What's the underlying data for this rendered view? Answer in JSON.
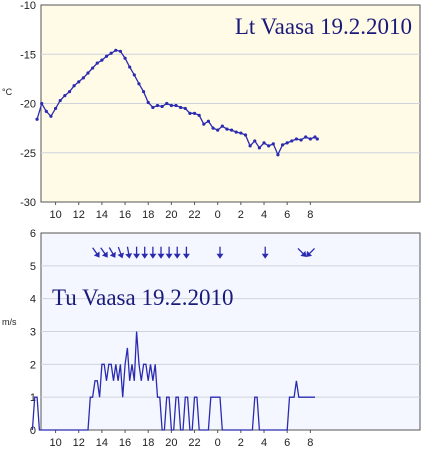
{
  "chart_data": [
    {
      "type": "line",
      "title": "Lt Vaasa 19.2.2010",
      "ylabel": "°C",
      "ylim": [
        -30,
        -10
      ],
      "yticks": [
        "-10",
        "-15",
        "-20",
        "-25",
        "-30"
      ],
      "xticks": [
        "10",
        "12",
        "14",
        "16",
        "18",
        "20",
        "22",
        "0",
        "2",
        "4",
        "6",
        "8"
      ],
      "background": "#fffbe6",
      "series": [
        {
          "color": "#2b2bb0",
          "x": [
            8.4,
            8.8,
            9.2,
            9.6,
            10.0,
            10.4,
            10.8,
            11.2,
            11.6,
            12.0,
            12.4,
            12.8,
            13.2,
            13.6,
            14.0,
            14.4,
            14.8,
            15.2,
            15.6,
            16.0,
            16.4,
            16.8,
            17.2,
            17.6,
            18.0,
            18.4,
            18.8,
            19.2,
            19.6,
            20.0,
            20.4,
            20.8,
            21.2,
            21.6,
            22.0,
            22.4,
            22.8,
            23.2,
            23.6,
            24.0,
            24.4,
            24.8,
            25.2,
            25.6,
            26.0,
            26.4,
            26.8,
            27.2,
            27.6,
            28.0,
            28.4,
            28.8,
            29.2,
            29.6,
            30.0,
            30.4,
            30.8,
            31.2,
            31.6,
            32.0,
            32.4,
            32.6
          ],
          "values": [
            -21.6,
            -20.0,
            -20.8,
            -21.3,
            -20.5,
            -19.7,
            -19.2,
            -18.8,
            -18.2,
            -17.8,
            -17.4,
            -16.9,
            -16.4,
            -15.9,
            -15.6,
            -15.2,
            -14.9,
            -14.6,
            -14.7,
            -15.4,
            -16.3,
            -17.1,
            -18.0,
            -18.8,
            -19.9,
            -20.4,
            -20.2,
            -20.3,
            -20.0,
            -20.2,
            -20.2,
            -20.4,
            -20.5,
            -21.0,
            -21.0,
            -21.2,
            -22.1,
            -21.8,
            -22.5,
            -22.7,
            -22.3,
            -22.6,
            -22.7,
            -22.9,
            -23.0,
            -23.2,
            -24.3,
            -23.8,
            -24.5,
            -24.0,
            -24.3,
            -24.1,
            -25.2,
            -24.2,
            -24.0,
            -23.8,
            -23.6,
            -23.7,
            -23.4,
            -23.6,
            -23.4,
            -23.6
          ]
        }
      ]
    },
    {
      "type": "line",
      "title": "Tu Vaasa 19.2.2010",
      "ylabel": "m/s",
      "ylim": [
        0,
        6
      ],
      "yticks": [
        "6",
        "5",
        "4",
        "3",
        "2",
        "1",
        "0"
      ],
      "xticks": [
        "10",
        "12",
        "14",
        "16",
        "18",
        "20",
        "22",
        "0",
        "2",
        "4",
        "6",
        "8"
      ],
      "background": "#f4f7ff",
      "series": [
        {
          "color": "#2b2bb0",
          "x": [
            8.0,
            8.2,
            8.4,
            8.6,
            12.6,
            12.8,
            13.0,
            13.2,
            13.4,
            13.6,
            13.8,
            14.0,
            14.2,
            14.4,
            14.6,
            14.8,
            15.0,
            15.2,
            15.4,
            15.6,
            15.8,
            16.0,
            16.2,
            16.4,
            16.6,
            16.8,
            17.0,
            17.2,
            17.4,
            17.6,
            17.8,
            18.0,
            18.2,
            18.4,
            18.6,
            18.8,
            19.0,
            19.2,
            19.4,
            19.6,
            19.8,
            20.0,
            20.2,
            20.4,
            20.6,
            20.8,
            21.0,
            21.2,
            21.4,
            21.6,
            21.8,
            22.0,
            22.2,
            22.4,
            22.6,
            22.8,
            23.0,
            23.2,
            23.4,
            23.6,
            24.2,
            24.4,
            25.4,
            27.0,
            27.2,
            27.4,
            27.6,
            30.0,
            30.2,
            30.4,
            30.6,
            30.8,
            31.0,
            31.2,
            31.4,
            32.4
          ],
          "values": [
            0,
            1,
            1,
            0,
            0,
            0,
            1,
            1,
            1.5,
            1.5,
            1,
            2,
            2,
            1.5,
            2,
            2,
            1.5,
            2,
            1.5,
            2,
            1,
            2,
            2.5,
            1.5,
            2,
            1.5,
            3,
            2,
            1.5,
            2,
            2,
            1.5,
            2,
            1.5,
            2,
            1,
            1,
            0,
            0,
            1,
            1,
            0,
            0,
            1,
            1,
            0,
            0,
            1,
            1,
            0,
            0,
            1,
            1,
            0,
            0,
            0,
            0,
            0,
            1,
            1,
            1,
            0,
            0,
            0,
            1,
            1,
            0,
            0,
            1,
            1,
            1,
            1.5,
            1,
            1,
            1,
            1
          ]
        }
      ],
      "wind_directions": {
        "x": [
          13.5,
          14.2,
          14.9,
          15.6,
          16.3,
          17.0,
          17.7,
          18.4,
          19.1,
          19.8,
          20.5,
          21.3,
          24.2,
          28.1,
          31.3,
          32.0
        ],
        "level": 5.4,
        "angles_deg": [
          -35,
          -35,
          -30,
          -20,
          -10,
          0,
          0,
          0,
          0,
          0,
          0,
          0,
          0,
          0,
          -45,
          45
        ]
      }
    }
  ]
}
